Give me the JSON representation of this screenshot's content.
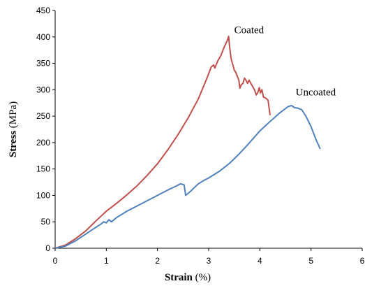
{
  "chart_data": {
    "type": "line",
    "title": "",
    "xlabel": {
      "bold": "Strain",
      "unit": " (%)"
    },
    "ylabel": {
      "bold": "Stress",
      "unit": "  (MPa)"
    },
    "xlim": [
      0,
      6
    ],
    "ylim": [
      0,
      450
    ],
    "x_ticks": [
      0,
      1,
      2,
      3,
      4,
      5,
      6
    ],
    "y_ticks": [
      0,
      50,
      100,
      150,
      200,
      250,
      300,
      350,
      400,
      450
    ],
    "grid": false,
    "legend": "none",
    "series": [
      {
        "name": "Coated",
        "color": "#c0504d",
        "points": [
          [
            0,
            0
          ],
          [
            0.2,
            6
          ],
          [
            0.4,
            18
          ],
          [
            0.6,
            33
          ],
          [
            0.8,
            52
          ],
          [
            1.0,
            70
          ],
          [
            1.2,
            85
          ],
          [
            1.4,
            101
          ],
          [
            1.6,
            118
          ],
          [
            1.8,
            138
          ],
          [
            2.0,
            160
          ],
          [
            2.2,
            186
          ],
          [
            2.4,
            215
          ],
          [
            2.6,
            247
          ],
          [
            2.8,
            283
          ],
          [
            2.95,
            318
          ],
          [
            3.05,
            343
          ],
          [
            3.1,
            347
          ],
          [
            3.12,
            341
          ],
          [
            3.18,
            355
          ],
          [
            3.24,
            365
          ],
          [
            3.3,
            380
          ],
          [
            3.34,
            388
          ],
          [
            3.37,
            395
          ],
          [
            3.39,
            401
          ],
          [
            3.41,
            380
          ],
          [
            3.44,
            358
          ],
          [
            3.47,
            348
          ],
          [
            3.5,
            337
          ],
          [
            3.53,
            333
          ],
          [
            3.56,
            325
          ],
          [
            3.59,
            318
          ],
          [
            3.61,
            303
          ],
          [
            3.64,
            310
          ],
          [
            3.67,
            312
          ],
          [
            3.7,
            322
          ],
          [
            3.73,
            318
          ],
          [
            3.76,
            312
          ],
          [
            3.79,
            318
          ],
          [
            3.83,
            311
          ],
          [
            3.86,
            306
          ],
          [
            3.9,
            299
          ],
          [
            3.93,
            290
          ],
          [
            3.96,
            295
          ],
          [
            3.99,
            304
          ],
          [
            4.01,
            294
          ],
          [
            4.04,
            300
          ],
          [
            4.07,
            286
          ],
          [
            4.1,
            285
          ],
          [
            4.13,
            283
          ],
          [
            4.16,
            280
          ],
          [
            4.2,
            252
          ]
        ]
      },
      {
        "name": "Uncoated",
        "color": "#4f81bd",
        "points": [
          [
            0,
            0
          ],
          [
            0.2,
            4
          ],
          [
            0.4,
            14
          ],
          [
            0.6,
            27
          ],
          [
            0.8,
            40
          ],
          [
            0.9,
            46
          ],
          [
            0.95,
            50
          ],
          [
            1.0,
            48
          ],
          [
            1.05,
            54
          ],
          [
            1.1,
            50
          ],
          [
            1.2,
            58
          ],
          [
            1.4,
            70
          ],
          [
            1.6,
            80
          ],
          [
            1.8,
            90
          ],
          [
            2.0,
            100
          ],
          [
            2.2,
            110
          ],
          [
            2.35,
            117
          ],
          [
            2.45,
            122
          ],
          [
            2.52,
            120
          ],
          [
            2.55,
            100
          ],
          [
            2.6,
            104
          ],
          [
            2.65,
            108
          ],
          [
            2.7,
            113
          ],
          [
            2.8,
            122
          ],
          [
            2.9,
            128
          ],
          [
            3.0,
            133
          ],
          [
            3.2,
            145
          ],
          [
            3.4,
            160
          ],
          [
            3.6,
            179
          ],
          [
            3.8,
            200
          ],
          [
            4.0,
            222
          ],
          [
            4.2,
            240
          ],
          [
            4.4,
            257
          ],
          [
            4.55,
            268
          ],
          [
            4.62,
            270
          ],
          [
            4.68,
            266
          ],
          [
            4.75,
            265
          ],
          [
            4.82,
            262
          ],
          [
            4.9,
            250
          ],
          [
            5.0,
            230
          ],
          [
            5.1,
            205
          ],
          [
            5.18,
            188
          ]
        ]
      }
    ]
  }
}
